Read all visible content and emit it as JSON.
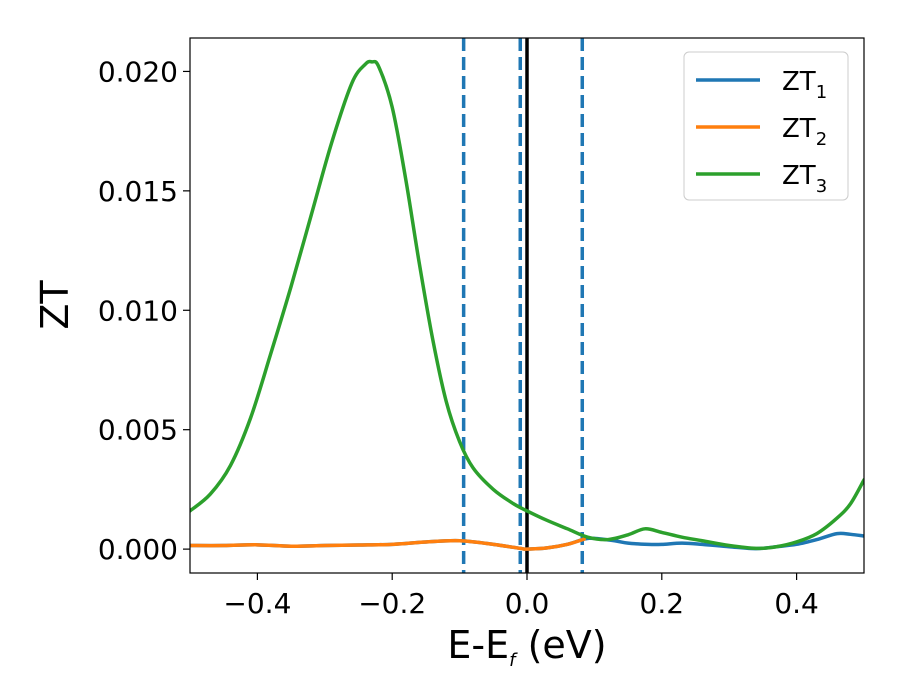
{
  "chart_data": {
    "type": "line",
    "xlabel_main": "E-E",
    "xlabel_sub": "f",
    "xlabel_tail": " (eV)",
    "ylabel": "ZT",
    "xlim": [
      -0.5,
      0.5
    ],
    "ylim": [
      -0.001,
      0.0214
    ],
    "xticks": [
      -0.4,
      -0.2,
      0.0,
      0.2,
      0.4
    ],
    "xtick_labels": [
      "−0.4",
      "−0.2",
      "0.0",
      "0.2",
      "0.4"
    ],
    "yticks": [
      0.0,
      0.005,
      0.01,
      0.015,
      0.02
    ],
    "ytick_labels": [
      "0.000",
      "0.005",
      "0.010",
      "0.015",
      "0.020"
    ],
    "grid": false,
    "legend_placement": "top-right",
    "vlines": [
      {
        "x": -0.094,
        "style": "dashed",
        "color": "#1f77b4"
      },
      {
        "x": -0.01,
        "style": "dashed",
        "color": "#1f77b4"
      },
      {
        "x": 0.0,
        "style": "solid",
        "color": "#000000"
      },
      {
        "x": 0.082,
        "style": "dashed",
        "color": "#1f77b4"
      }
    ],
    "series": [
      {
        "name": "ZT",
        "name_sub": "1",
        "color": "#1f77b4",
        "x": [
          -0.5,
          -0.45,
          -0.4,
          -0.35,
          -0.3,
          -0.25,
          -0.2,
          -0.15,
          -0.1,
          -0.05,
          -0.01,
          0.0,
          0.03,
          0.06,
          0.085,
          0.1,
          0.13,
          0.15,
          0.18,
          0.2,
          0.23,
          0.26,
          0.3,
          0.34,
          0.37,
          0.4,
          0.43,
          0.46,
          0.48,
          0.5
        ],
        "y": [
          0.00015,
          0.00015,
          0.00018,
          0.00012,
          0.00015,
          0.00017,
          0.0002,
          0.0003,
          0.00035,
          0.0002,
          3e-05,
          0.0,
          5e-05,
          0.0002,
          0.00042,
          0.00045,
          0.00035,
          0.00025,
          0.0002,
          0.0002,
          0.00025,
          0.0002,
          0.0001,
          2e-05,
          0.0001,
          0.0002,
          0.0004,
          0.00065,
          0.00062,
          0.00055
        ]
      },
      {
        "name": "ZT",
        "name_sub": "2",
        "color": "#ff7f0e",
        "x": [
          -0.5,
          -0.45,
          -0.4,
          -0.35,
          -0.3,
          -0.25,
          -0.2,
          -0.15,
          -0.1,
          -0.05,
          -0.01,
          0.0,
          0.03,
          0.06,
          0.085
        ],
        "y": [
          0.00015,
          0.00015,
          0.00018,
          0.00012,
          0.00015,
          0.00017,
          0.0002,
          0.0003,
          0.00035,
          0.0002,
          3e-05,
          0.0,
          5e-05,
          0.0002,
          0.00042
        ]
      },
      {
        "name": "ZT",
        "name_sub": "3",
        "color": "#2ca02c",
        "x": [
          -0.5,
          -0.47,
          -0.44,
          -0.41,
          -0.38,
          -0.35,
          -0.32,
          -0.29,
          -0.26,
          -0.24,
          -0.23,
          -0.22,
          -0.2,
          -0.18,
          -0.16,
          -0.14,
          -0.12,
          -0.1,
          -0.08,
          -0.05,
          -0.02,
          0.0,
          0.03,
          0.06,
          0.09,
          0.12,
          0.15,
          0.175,
          0.2,
          0.23,
          0.26,
          0.3,
          0.34,
          0.37,
          0.4,
          0.43,
          0.46,
          0.48,
          0.5
        ],
        "y": [
          0.0016,
          0.0023,
          0.0035,
          0.0055,
          0.0082,
          0.011,
          0.014,
          0.017,
          0.0195,
          0.0203,
          0.0204,
          0.0202,
          0.0185,
          0.0155,
          0.012,
          0.0088,
          0.0062,
          0.0045,
          0.0034,
          0.0025,
          0.0019,
          0.0016,
          0.0012,
          0.00085,
          0.0005,
          0.0004,
          0.0006,
          0.00085,
          0.0007,
          0.0005,
          0.00035,
          0.00015,
          3e-05,
          0.0001,
          0.0003,
          0.00065,
          0.0013,
          0.0019,
          0.0029
        ]
      }
    ]
  }
}
